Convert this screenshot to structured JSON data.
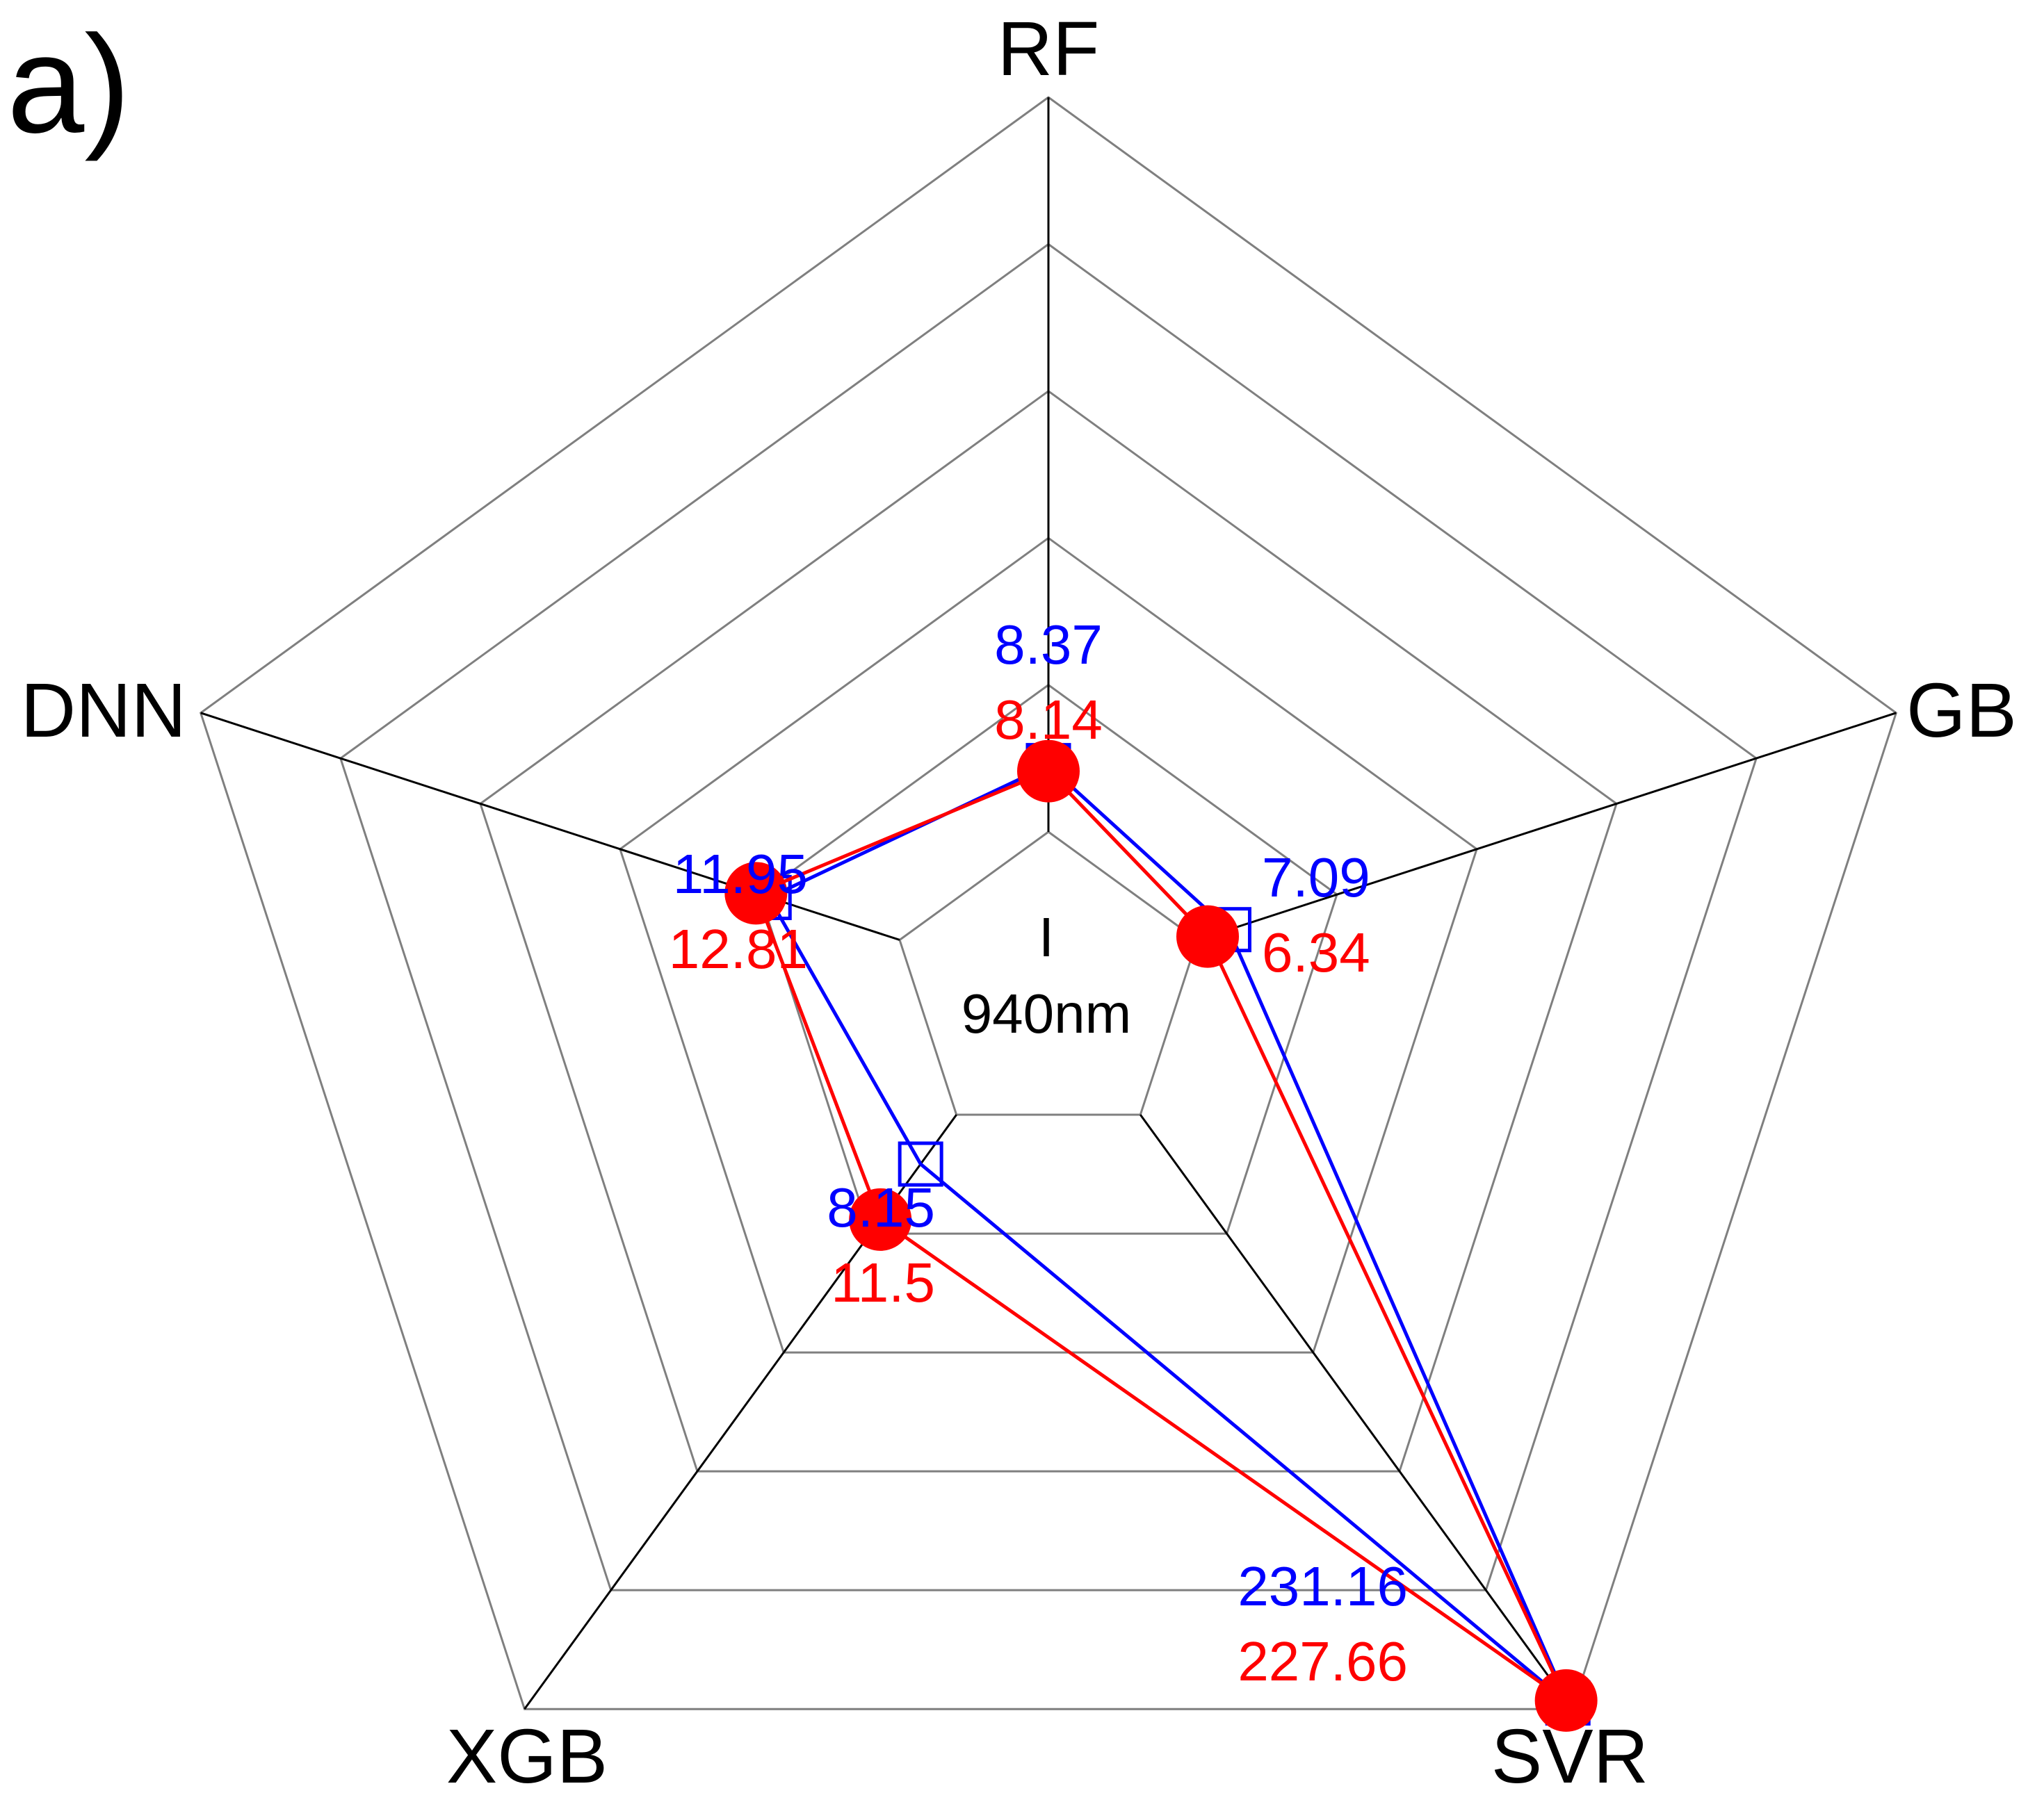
{
  "figure": {
    "panel_label": "a)",
    "center_label_line1": "I",
    "center_label_line2": "940nm"
  },
  "chart_data": {
    "type": "radar",
    "axes": [
      "RF",
      "GB",
      "SVR",
      "XGB",
      "DNN"
    ],
    "grid": true,
    "series": [
      {
        "color": "#0000ff",
        "marker": "open-square",
        "values": [
          8.37,
          7.09,
          231.16,
          8.15,
          11.95
        ],
        "labels": [
          "8.37",
          "7.09",
          "231.16",
          "8.15",
          "11.95"
        ]
      },
      {
        "color": "#ff0000",
        "marker": "filled-circle",
        "values": [
          8.14,
          6.34,
          227.66,
          11.5,
          12.81
        ],
        "labels": [
          "8.14",
          "6.34",
          "227.66",
          "11.5",
          "12.81"
        ]
      }
    ]
  }
}
